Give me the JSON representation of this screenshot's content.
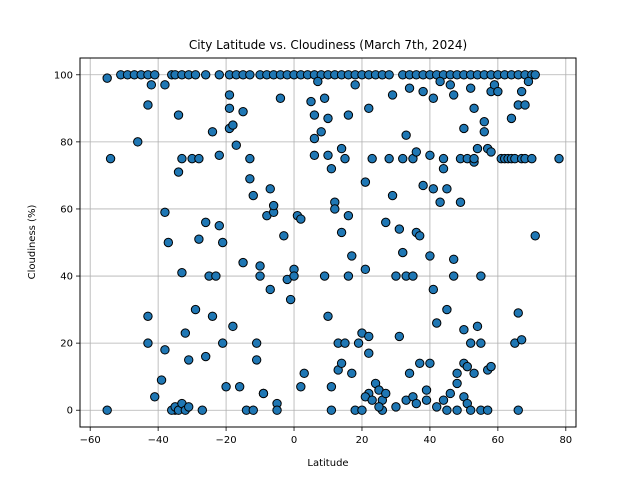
{
  "chart_data": {
    "type": "scatter",
    "title": "City Latitude vs. Cloudiness (March 7th, 2024)",
    "xlabel": "Latitude",
    "ylabel": "Cloudiness (%)",
    "xlim": [
      -63,
      83
    ],
    "ylim": [
      -5,
      105
    ],
    "xticks": [
      -60,
      -40,
      -20,
      0,
      20,
      40,
      60,
      80
    ],
    "yticks": [
      0,
      20,
      40,
      60,
      80,
      100
    ],
    "grid": true,
    "marker_color": "#1f77b4",
    "marker_edge": "#000000",
    "points": [
      [
        -55,
        99
      ],
      [
        -54,
        75
      ],
      [
        -51,
        100
      ],
      [
        -49,
        100
      ],
      [
        -47,
        100
      ],
      [
        -45,
        100
      ],
      [
        -43,
        100
      ],
      [
        -41,
        100
      ],
      [
        -46,
        80
      ],
      [
        -43,
        91
      ],
      [
        -42,
        97
      ],
      [
        -38,
        97
      ],
      [
        -36,
        100
      ],
      [
        -35,
        100
      ],
      [
        -34,
        88
      ],
      [
        -33,
        100
      ],
      [
        -31,
        100
      ],
      [
        -29,
        100
      ],
      [
        -26,
        100
      ],
      [
        -22,
        100
      ],
      [
        -19,
        100
      ],
      [
        -17,
        100
      ],
      [
        -15,
        100
      ],
      [
        -13,
        100
      ],
      [
        -10,
        100
      ],
      [
        -8,
        100
      ],
      [
        -6,
        100
      ],
      [
        -4,
        100
      ],
      [
        -2,
        100
      ],
      [
        0,
        100
      ],
      [
        2,
        100
      ],
      [
        4,
        100
      ],
      [
        6,
        100
      ],
      [
        8,
        100
      ],
      [
        10,
        100
      ],
      [
        12,
        100
      ],
      [
        14,
        100
      ],
      [
        16,
        100
      ],
      [
        18,
        100
      ],
      [
        20,
        100
      ],
      [
        22,
        100
      ],
      [
        24,
        100
      ],
      [
        26,
        100
      ],
      [
        28,
        100
      ],
      [
        32,
        100
      ],
      [
        34,
        100
      ],
      [
        36,
        100
      ],
      [
        38,
        100
      ],
      [
        40,
        100
      ],
      [
        42,
        100
      ],
      [
        44,
        100
      ],
      [
        46,
        100
      ],
      [
        48,
        100
      ],
      [
        50,
        100
      ],
      [
        52,
        100
      ],
      [
        54,
        100
      ],
      [
        56,
        100
      ],
      [
        58,
        100
      ],
      [
        60,
        100
      ],
      [
        62,
        100
      ],
      [
        64,
        100
      ],
      [
        66,
        100
      ],
      [
        68,
        100
      ],
      [
        70,
        100
      ],
      [
        71,
        100
      ],
      [
        -55,
        0
      ],
      [
        -43,
        28
      ],
      [
        -43,
        20
      ],
      [
        -41,
        4
      ],
      [
        -39,
        9
      ],
      [
        -38,
        59
      ],
      [
        -38,
        18
      ],
      [
        -37,
        50
      ],
      [
        -35,
        0
      ],
      [
        -34,
        71
      ],
      [
        -33,
        75
      ],
      [
        -33,
        41
      ],
      [
        -32,
        23
      ],
      [
        -31,
        15
      ],
      [
        -30,
        75
      ],
      [
        -29,
        30
      ],
      [
        -28,
        51
      ],
      [
        -28,
        75
      ],
      [
        -27,
        0
      ],
      [
        -26,
        56
      ],
      [
        -26,
        16
      ],
      [
        -25,
        40
      ],
      [
        -24,
        83
      ],
      [
        -24,
        28
      ],
      [
        -23,
        40
      ],
      [
        -22,
        76
      ],
      [
        -22,
        55
      ],
      [
        -21,
        20
      ],
      [
        -21,
        50
      ],
      [
        -20,
        7
      ],
      [
        -19,
        94
      ],
      [
        -19,
        90
      ],
      [
        -19,
        84
      ],
      [
        -18,
        85
      ],
      [
        -18,
        25
      ],
      [
        -17,
        79
      ],
      [
        -16,
        7
      ],
      [
        -15,
        89
      ],
      [
        -15,
        44
      ],
      [
        -14,
        0
      ],
      [
        -13,
        75
      ],
      [
        -13,
        69
      ],
      [
        -12,
        64
      ],
      [
        -11,
        15
      ],
      [
        -11,
        20
      ],
      [
        -10,
        43
      ],
      [
        -10,
        40
      ],
      [
        -9,
        5
      ],
      [
        -8,
        58
      ],
      [
        -7,
        66
      ],
      [
        -7,
        36
      ],
      [
        -6,
        59
      ],
      [
        -6,
        61
      ],
      [
        -5,
        2
      ],
      [
        -5,
        0
      ],
      [
        -4,
        93
      ],
      [
        -3,
        52
      ],
      [
        -2,
        39
      ],
      [
        -1,
        33
      ],
      [
        0,
        42
      ],
      [
        0,
        40
      ],
      [
        1,
        58
      ],
      [
        2,
        57
      ],
      [
        2,
        7
      ],
      [
        3,
        11
      ],
      [
        5,
        92
      ],
      [
        6,
        88
      ],
      [
        6,
        81
      ],
      [
        6,
        76
      ],
      [
        7,
        98
      ],
      [
        8,
        83
      ],
      [
        9,
        93
      ],
      [
        9,
        40
      ],
      [
        10,
        28
      ],
      [
        10,
        87
      ],
      [
        10,
        76
      ],
      [
        11,
        72
      ],
      [
        11,
        7
      ],
      [
        11,
        0
      ],
      [
        12,
        62
      ],
      [
        12,
        60
      ],
      [
        13,
        20
      ],
      [
        13,
        12
      ],
      [
        14,
        78
      ],
      [
        14,
        53
      ],
      [
        14,
        14
      ],
      [
        15,
        75
      ],
      [
        15,
        20
      ],
      [
        16,
        88
      ],
      [
        16,
        58
      ],
      [
        16,
        40
      ],
      [
        17,
        46
      ],
      [
        17,
        11
      ],
      [
        18,
        97
      ],
      [
        18,
        0
      ],
      [
        19,
        20
      ],
      [
        20,
        23
      ],
      [
        21,
        68
      ],
      [
        21,
        42
      ],
      [
        22,
        90
      ],
      [
        22,
        22
      ],
      [
        22,
        17
      ],
      [
        22,
        5
      ],
      [
        23,
        75
      ],
      [
        24,
        8
      ],
      [
        25,
        6
      ],
      [
        26,
        3
      ],
      [
        26,
        0
      ],
      [
        27,
        56
      ],
      [
        28,
        75
      ],
      [
        29,
        94
      ],
      [
        29,
        64
      ],
      [
        30,
        40
      ],
      [
        31,
        54
      ],
      [
        31,
        22
      ],
      [
        32,
        47
      ],
      [
        32,
        75
      ],
      [
        33,
        82
      ],
      [
        33,
        40
      ],
      [
        34,
        11
      ],
      [
        34,
        96
      ],
      [
        35,
        75
      ],
      [
        35,
        40
      ],
      [
        36,
        77
      ],
      [
        36,
        53
      ],
      [
        37,
        52
      ],
      [
        37,
        14
      ],
      [
        38,
        95
      ],
      [
        38,
        67
      ],
      [
        39,
        6
      ],
      [
        39,
        3
      ],
      [
        40,
        76
      ],
      [
        40,
        46
      ],
      [
        40,
        14
      ],
      [
        41,
        93
      ],
      [
        41,
        66
      ],
      [
        41,
        36
      ],
      [
        42,
        26
      ],
      [
        43,
        98
      ],
      [
        43,
        62
      ],
      [
        44,
        75
      ],
      [
        44,
        72
      ],
      [
        45,
        66
      ],
      [
        45,
        30
      ],
      [
        46,
        97
      ],
      [
        47,
        94
      ],
      [
        47,
        45
      ],
      [
        47,
        40
      ],
      [
        48,
        11
      ],
      [
        48,
        0
      ],
      [
        49,
        75
      ],
      [
        49,
        62
      ],
      [
        50,
        84
      ],
      [
        50,
        24
      ],
      [
        50,
        14
      ],
      [
        51,
        75
      ],
      [
        51,
        13
      ],
      [
        52,
        96
      ],
      [
        52,
        20
      ],
      [
        53,
        90
      ],
      [
        53,
        74
      ],
      [
        53,
        75
      ],
      [
        54,
        78
      ],
      [
        54,
        25
      ],
      [
        55,
        40
      ],
      [
        55,
        20
      ],
      [
        56,
        86
      ],
      [
        56,
        83
      ],
      [
        57,
        78
      ],
      [
        57,
        12
      ],
      [
        58,
        77
      ],
      [
        58,
        95
      ],
      [
        58,
        13
      ],
      [
        59,
        97
      ],
      [
        60,
        95
      ],
      [
        61,
        75
      ],
      [
        62,
        75
      ],
      [
        63,
        75
      ],
      [
        64,
        87
      ],
      [
        64,
        75
      ],
      [
        65,
        75
      ],
      [
        65,
        20
      ],
      [
        66,
        91
      ],
      [
        66,
        29
      ],
      [
        67,
        95
      ],
      [
        67,
        75
      ],
      [
        68,
        91
      ],
      [
        68,
        75
      ],
      [
        69,
        98
      ],
      [
        70,
        75
      ],
      [
        71,
        52
      ],
      [
        78,
        75
      ],
      [
        -36,
        0
      ],
      [
        -35,
        1
      ],
      [
        -34,
        0
      ],
      [
        -33,
        2
      ],
      [
        -32,
        0
      ],
      [
        -31,
        1
      ],
      [
        -12,
        0
      ],
      [
        -9,
        5
      ],
      [
        20,
        0
      ],
      [
        21,
        4
      ],
      [
        23,
        3
      ],
      [
        25,
        1
      ],
      [
        27,
        5
      ],
      [
        30,
        1
      ],
      [
        33,
        3
      ],
      [
        35,
        4
      ],
      [
        36,
        2
      ],
      [
        42,
        1
      ],
      [
        44,
        3
      ],
      [
        45,
        0
      ],
      [
        46,
        5
      ],
      [
        48,
        8
      ],
      [
        50,
        4
      ],
      [
        51,
        2
      ],
      [
        52,
        0
      ],
      [
        53,
        11
      ],
      [
        55,
        0
      ],
      [
        57,
        0
      ],
      [
        66,
        0
      ],
      [
        67,
        21
      ]
    ]
  }
}
